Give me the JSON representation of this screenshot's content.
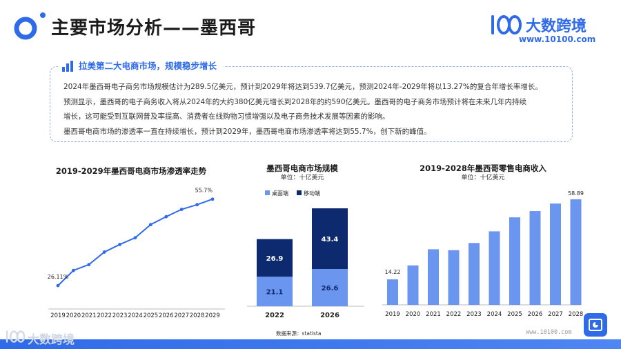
{
  "header": {
    "title": "主要市场分析——墨西哥"
  },
  "brand": {
    "name": "大数跨境",
    "url": "www.10100.com",
    "logo_text": "100"
  },
  "summary": {
    "heading": "拉美第二大电商市场，规模稳步增长",
    "lines": [
      "2024年墨西哥电子商务市场规模估计为289.5亿美元，预计到2029年将达到539.7亿美元，预测2024年-2029年将以13.27%的复合年增长率增长。",
      "预测显示，墨西哥的电子商务收入将从2024年的大约380亿美元增长到2028年的约590亿美元。墨西哥的电子商务市场预计将在未来几年内持续",
      "增长，这可能受到互联网普及率提高、消费者在线购物习惯增强以及电子商务技术发展等因素的影响。",
      "墨西哥电商市场的渗透率一直在持续增长，预计到2029年，墨西哥电商市场渗透率将达到55.7%，创下新的峰值。"
    ]
  },
  "chart_data": [
    {
      "type": "line",
      "title": "2019-2029年墨西哥电商市场渗透率走势",
      "x": [
        "2019",
        "2020",
        "2021",
        "2022",
        "2023",
        "2024",
        "2025",
        "2026",
        "2027",
        "2028",
        "2029"
      ],
      "values": [
        26.11,
        31.3,
        33.3,
        37.6,
        40.2,
        42.5,
        47.0,
        49.7,
        52.2,
        53.8,
        55.7
      ],
      "data_labels": {
        "first": "26.11%",
        "last": "55.7%"
      },
      "color": "#2f6ae8",
      "ylim": [
        20,
        58
      ],
      "grid": false
    },
    {
      "type": "bar",
      "stacked": true,
      "title": "墨西哥电商市场规模",
      "subtitle": "单位：十亿美元",
      "categories": [
        "2022",
        "2026"
      ],
      "series": [
        {
          "name": "桌面端",
          "values": [
            21.1,
            26.6
          ],
          "color": "#6b96ef"
        },
        {
          "name": "移动端",
          "values": [
            26.9,
            43.4
          ],
          "color": "#0e2a6e"
        }
      ],
      "ylim": [
        0,
        72
      ],
      "legend": "top-left"
    },
    {
      "type": "bar",
      "title": "2019-2028年墨西哥零售电商收入",
      "subtitle": "单位：十亿美元",
      "categories": [
        "2019",
        "2020",
        "2021",
        "2022",
        "2023",
        "2024",
        "2025",
        "2026",
        "2027",
        "2028"
      ],
      "values": [
        14.22,
        22.0,
        31.0,
        30.5,
        34.5,
        41.0,
        48.8,
        52.3,
        56.5,
        58.89
      ],
      "data_labels": {
        "first": "14.22",
        "last": "58.89"
      },
      "color": "#6b96ef",
      "ylim": [
        0,
        60
      ]
    }
  ],
  "footer": {
    "source": "数据来源：statista",
    "url": "www.10100.com",
    "brand": "大数跨境"
  }
}
